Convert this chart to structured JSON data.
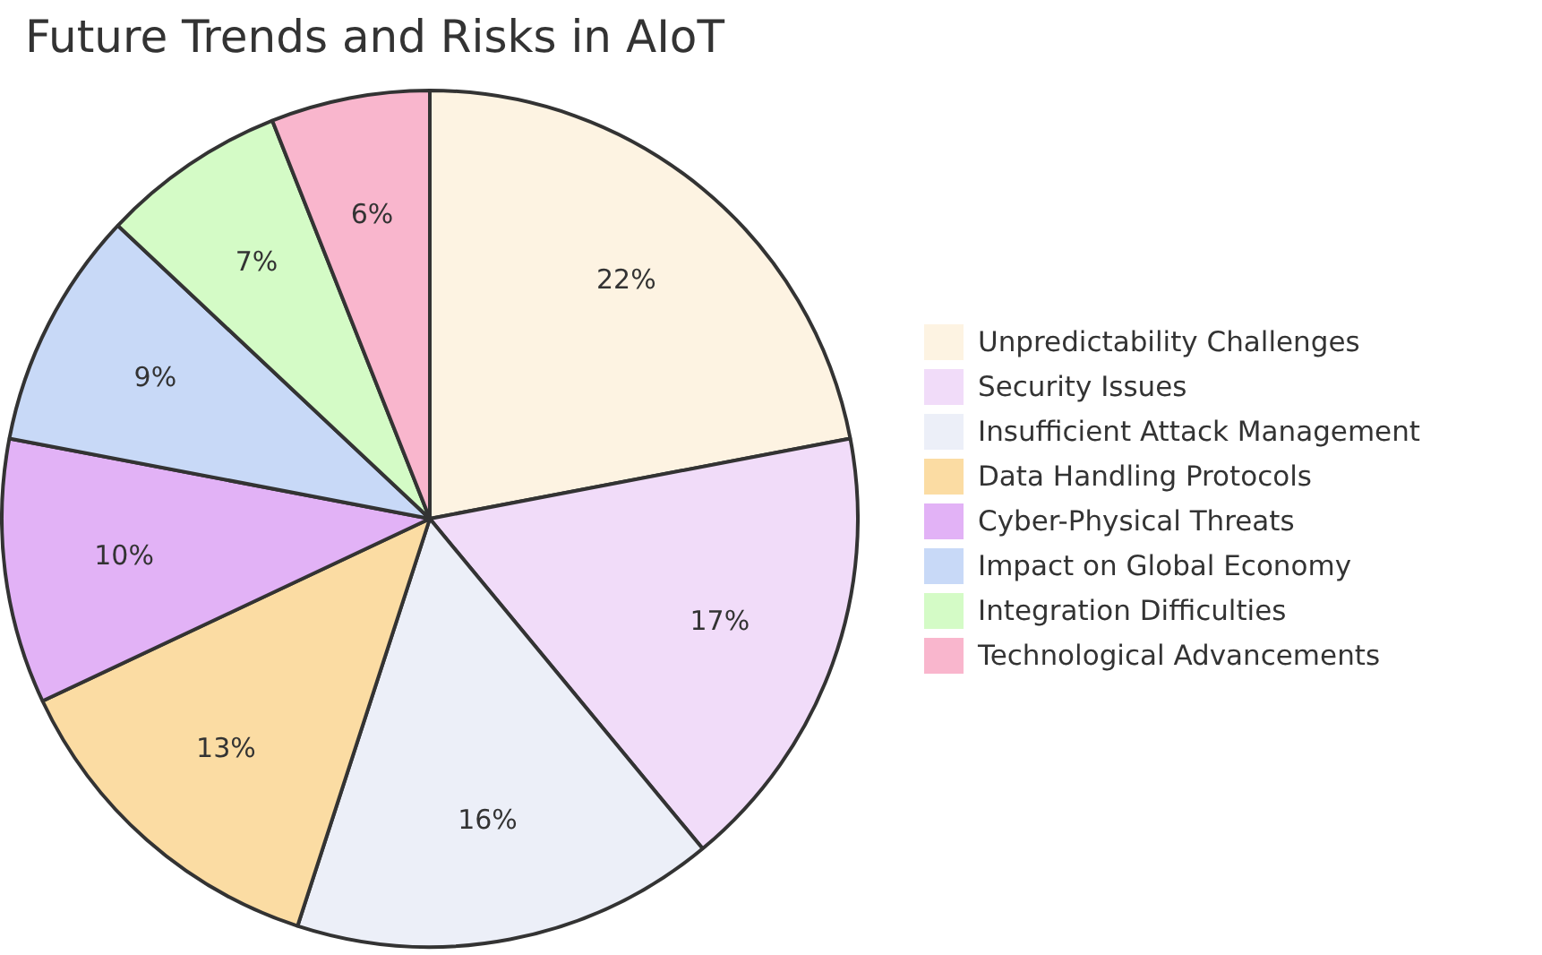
{
  "chart_data": {
    "type": "pie",
    "title": "Future Trends and Risks in AIoT",
    "categories": [
      "Unpredictability Challenges",
      "Security Issues",
      "Insufficient Attack Management",
      "Data Handling Protocols",
      "Cyber-Physical Threats",
      "Impact on Global Economy",
      "Integration Difficulties",
      "Technological Advancements"
    ],
    "values": [
      22,
      17,
      16,
      13,
      10,
      9,
      7,
      6
    ],
    "value_labels": [
      "22%",
      "17%",
      "16%",
      "13%",
      "10%",
      "9%",
      "7%",
      "6%"
    ],
    "colors": [
      "#fdf3e2",
      "#f1dcf9",
      "#eceff8",
      "#fbdca3",
      "#e2b2f6",
      "#c8d9f7",
      "#d4fbc6",
      "#f9b6cd"
    ],
    "legend": "right"
  }
}
